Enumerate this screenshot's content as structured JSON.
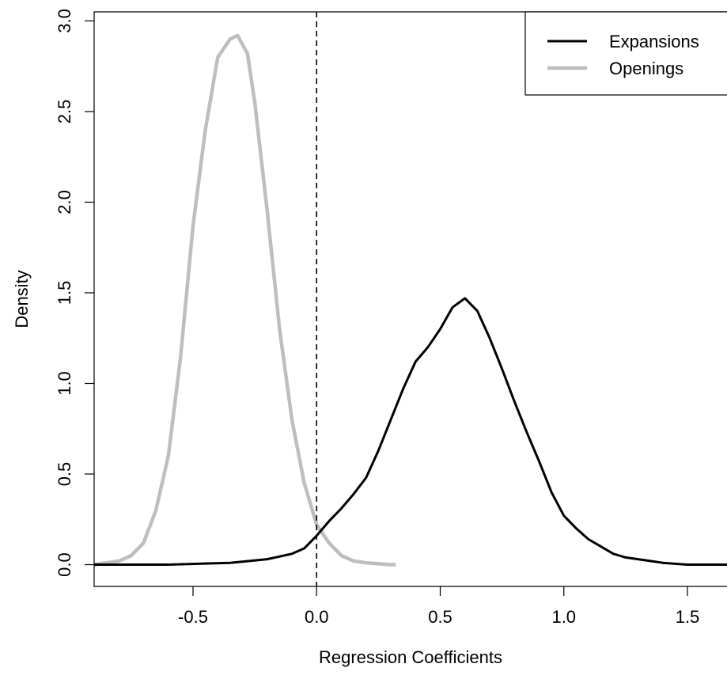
{
  "chart_data": {
    "type": "line",
    "title": "",
    "xlabel": "Regression Coefficients",
    "ylabel": "Density",
    "xlim": [
      -0.9,
      1.66
    ],
    "ylim": [
      -0.12,
      3.05
    ],
    "xticks": [
      -0.5,
      0.0,
      0.5,
      1.0,
      1.5
    ],
    "xtick_labels": [
      "-0.5",
      "0.0",
      "0.5",
      "1.0",
      "1.5"
    ],
    "yticks": [
      0.0,
      0.5,
      1.0,
      1.5,
      2.0,
      2.5,
      3.0
    ],
    "ytick_labels": [
      "0.0",
      "0.5",
      "1.0",
      "1.5",
      "2.0",
      "2.5",
      "3.0"
    ],
    "grid": false,
    "legend_position": "top-right",
    "vline": {
      "x": 0.0,
      "style": "dashed"
    },
    "series": [
      {
        "name": "Expansions",
        "color": "#000000",
        "x": [
          -0.9,
          -0.6,
          -0.35,
          -0.2,
          -0.1,
          -0.05,
          0.0,
          0.05,
          0.1,
          0.15,
          0.2,
          0.25,
          0.3,
          0.35,
          0.4,
          0.45,
          0.5,
          0.55,
          0.6,
          0.65,
          0.7,
          0.75,
          0.8,
          0.85,
          0.9,
          0.95,
          1.0,
          1.05,
          1.1,
          1.15,
          1.2,
          1.25,
          1.3,
          1.35,
          1.4,
          1.45,
          1.5,
          1.6,
          1.66
        ],
        "y": [
          0.0,
          0.0,
          0.01,
          0.03,
          0.06,
          0.09,
          0.16,
          0.24,
          0.31,
          0.39,
          0.48,
          0.63,
          0.8,
          0.97,
          1.12,
          1.2,
          1.3,
          1.42,
          1.47,
          1.4,
          1.25,
          1.08,
          0.9,
          0.73,
          0.57,
          0.4,
          0.27,
          0.2,
          0.14,
          0.1,
          0.06,
          0.04,
          0.03,
          0.02,
          0.01,
          0.005,
          0.0,
          0.0,
          0.0
        ]
      },
      {
        "name": "Openings",
        "color": "#bebebe",
        "x": [
          -0.9,
          -0.8,
          -0.75,
          -0.7,
          -0.65,
          -0.6,
          -0.55,
          -0.5,
          -0.45,
          -0.4,
          -0.35,
          -0.32,
          -0.3,
          -0.28,
          -0.25,
          -0.2,
          -0.15,
          -0.1,
          -0.05,
          0.0,
          0.05,
          0.1,
          0.15,
          0.2,
          0.25,
          0.3,
          0.32
        ],
        "y": [
          0.0,
          0.02,
          0.05,
          0.12,
          0.3,
          0.6,
          1.15,
          1.87,
          2.4,
          2.8,
          2.9,
          2.92,
          2.87,
          2.82,
          2.55,
          1.95,
          1.3,
          0.8,
          0.45,
          0.22,
          0.12,
          0.05,
          0.02,
          0.01,
          0.005,
          0.0,
          0.0
        ]
      }
    ]
  }
}
